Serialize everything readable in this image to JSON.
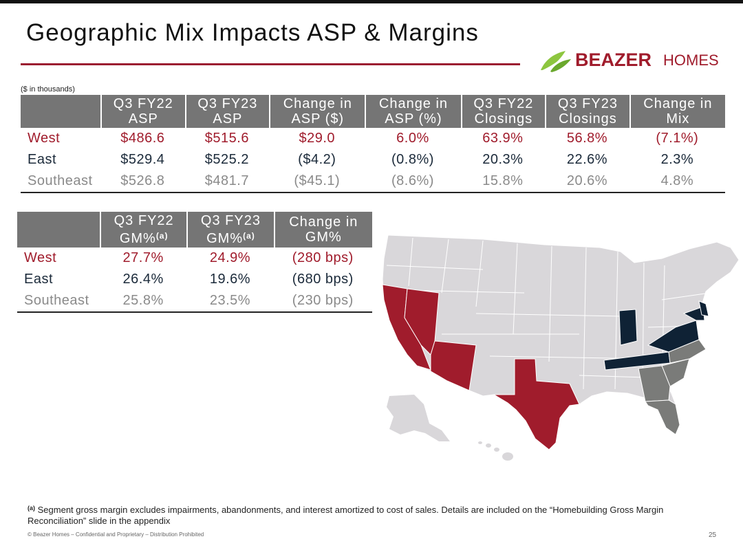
{
  "title": "Geographic Mix Impacts ASP & Margins",
  "logo": {
    "brand": "BEAZER",
    "brand2": "HOMES"
  },
  "units_note": "($ in thousands)",
  "colors": {
    "west": "#a01c2c",
    "east": "#1b2a3a",
    "southeast": "#8a8a8a",
    "header_bg": "#757575"
  },
  "table1": {
    "headers": [
      {
        "line1": "Q3 FY22",
        "line2": "ASP"
      },
      {
        "line1": "Q3 FY23",
        "line2": "ASP"
      },
      {
        "line1": "Change in",
        "line2": "ASP ($)"
      },
      {
        "line1": "Change in",
        "line2": "ASP (%)"
      },
      {
        "line1": "Q3 FY22",
        "line2": "Closings"
      },
      {
        "line1": "Q3 FY23",
        "line2": "Closings"
      },
      {
        "line1": "Change in",
        "line2": "Mix"
      }
    ],
    "rows": [
      {
        "label": "West",
        "cells": [
          "$486.6",
          "$515.6",
          "$29.0",
          "6.0%",
          "63.9%",
          "56.8%",
          "(7.1%)"
        ]
      },
      {
        "label": "East",
        "cells": [
          "$529.4",
          "$525.2",
          "($4.2)",
          "(0.8%)",
          "20.3%",
          "22.6%",
          "2.3%"
        ]
      },
      {
        "label": "Southeast",
        "cells": [
          "$526.8",
          "$481.7",
          "($45.1)",
          "(8.6%)",
          "15.8%",
          "20.6%",
          "4.8%"
        ]
      }
    ]
  },
  "table2": {
    "headers": [
      {
        "line1": "Q3 FY22",
        "line2": "GM%",
        "sup": "(a)"
      },
      {
        "line1": "Q3 FY23",
        "line2": "GM%",
        "sup": "(a)"
      },
      {
        "line1": "Change in",
        "line2": "GM%",
        "sup": ""
      }
    ],
    "rows": [
      {
        "label": "West",
        "cells": [
          "27.7%",
          "24.9%",
          "(280 bps)"
        ]
      },
      {
        "label": "East",
        "cells": [
          "26.4%",
          "19.6%",
          "(680 bps)"
        ]
      },
      {
        "label": "Southeast",
        "cells": [
          "25.8%",
          "23.5%",
          "(230 bps)"
        ]
      }
    ]
  },
  "footnote": {
    "marker": "(a)",
    "text": "Segment gross margin excludes impairments, abandonments, and interest amortized to cost of sales. Details are included on the “Homebuilding Gross Margin Reconciliation” slide in the appendix"
  },
  "footer": "© Beazer Homes – Confidential and Proprietary – Distribution Prohibited",
  "page_number": "25"
}
